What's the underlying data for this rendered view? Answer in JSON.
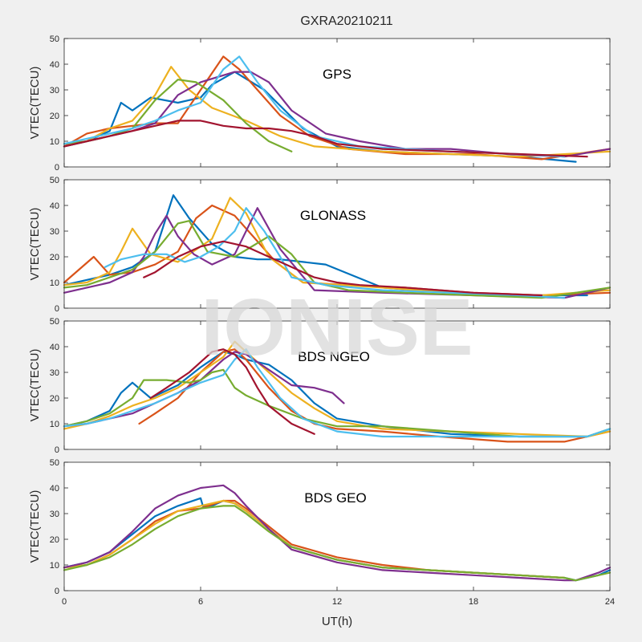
{
  "title": "GXRA20210211",
  "watermark": "IONISE",
  "xlabel": "UT(h)",
  "chart_data": [
    {
      "type": "line",
      "panel_label": "GPS",
      "ylabel": "VTEC(TECU)",
      "xlim": [
        0,
        24
      ],
      "ylim": [
        0,
        50
      ],
      "xticks": [
        0,
        6,
        12,
        18,
        24
      ],
      "yticks": [
        0,
        10,
        20,
        30,
        40,
        50
      ],
      "grid": false,
      "series": [
        {
          "color": "#0072BD",
          "x": [
            0,
            1,
            2,
            2.5,
            3,
            3.8,
            5,
            6,
            6.5,
            7.5,
            8.8,
            10.5,
            12,
            14,
            17,
            20,
            22.5
          ],
          "y": [
            8,
            10,
            14,
            25,
            22,
            27,
            25,
            27,
            32,
            37,
            30,
            15,
            8,
            6,
            5,
            4,
            2
          ]
        },
        {
          "color": "#D95319",
          "x": [
            0,
            1,
            2,
            3,
            4,
            5,
            6,
            7,
            7.7,
            8.5,
            9.5,
            10.8,
            12.5,
            15,
            18,
            21,
            24
          ],
          "y": [
            8,
            13,
            15,
            16,
            17,
            17,
            30,
            43,
            38,
            30,
            20,
            12,
            7,
            5,
            5,
            3,
            7
          ]
        },
        {
          "color": "#EDB120",
          "x": [
            0,
            1,
            2,
            3,
            4,
            4.7,
            5.5,
            6.5,
            8,
            9.5,
            11,
            14,
            17,
            20,
            24
          ],
          "y": [
            8,
            10,
            15,
            18,
            28,
            39,
            30,
            23,
            18,
            12,
            8,
            6,
            5,
            4,
            6
          ]
        },
        {
          "color": "#7E2F8E",
          "x": [
            0,
            1,
            2,
            3,
            4,
            5,
            6,
            7.5,
            8.2,
            9,
            10,
            11.5,
            13,
            15,
            17,
            19.5,
            22,
            24
          ],
          "y": [
            8,
            10,
            12,
            14,
            17,
            28,
            33,
            37,
            37,
            33,
            22,
            13,
            10,
            7,
            7,
            5,
            4,
            7
          ]
        },
        {
          "color": "#77AC30",
          "x": [
            0,
            1,
            2,
            3,
            4,
            5,
            5.8,
            7,
            8,
            9,
            10
          ],
          "y": [
            9,
            10,
            12,
            15,
            26,
            34,
            33,
            26,
            17,
            10,
            6
          ]
        },
        {
          "color": "#4DBEEE",
          "x": [
            0,
            1,
            2,
            3,
            4,
            5,
            6,
            7,
            7.7,
            8.5,
            9.5,
            11,
            13,
            15,
            17,
            20,
            22
          ],
          "y": [
            9,
            11,
            13,
            15,
            18,
            22,
            25,
            38,
            43,
            33,
            22,
            12,
            8,
            7,
            6,
            5,
            4
          ]
        },
        {
          "color": "#A2142F",
          "x": [
            0,
            1,
            2,
            3,
            4,
            5,
            6,
            7,
            8,
            9,
            10,
            11,
            12,
            14,
            17,
            20,
            23
          ],
          "y": [
            8,
            10,
            12,
            14,
            16,
            18,
            18,
            16,
            15,
            15,
            14,
            12,
            9,
            7,
            6,
            5,
            4
          ]
        }
      ]
    },
    {
      "type": "line",
      "panel_label": "GLONASS",
      "ylabel": "VTEC(TECU)",
      "xlim": [
        0,
        24
      ],
      "ylim": [
        0,
        50
      ],
      "xticks": [
        0,
        6,
        12,
        18,
        24
      ],
      "yticks": [
        0,
        10,
        20,
        30,
        40,
        50
      ],
      "grid": false,
      "series": [
        {
          "color": "#0072BD",
          "x": [
            0,
            1,
            2,
            3,
            4,
            4.8,
            5.5,
            6.5,
            7.5,
            8.5,
            9.5,
            10.5,
            11.5,
            14,
            17,
            20,
            23
          ],
          "y": [
            9,
            11,
            13,
            16,
            22,
            44,
            35,
            25,
            20,
            19,
            19,
            18,
            17,
            8,
            6,
            5,
            5
          ]
        },
        {
          "color": "#D95319",
          "x": [
            0,
            1.3,
            2,
            3,
            4,
            5,
            5.8,
            6.5,
            7.5,
            8.3,
            9.3,
            10.5,
            12.5,
            15,
            18,
            21,
            24
          ],
          "y": [
            10,
            20,
            13,
            14,
            17,
            22,
            35,
            40,
            36,
            28,
            18,
            10,
            9,
            8,
            6,
            5,
            6
          ]
        },
        {
          "color": "#EDB120",
          "x": [
            0,
            1,
            2,
            2.5,
            3,
            3.8,
            5,
            6.5,
            7.3,
            8,
            9,
            10.5,
            14,
            17,
            21,
            24
          ],
          "y": [
            9,
            10,
            14,
            22,
            31,
            21,
            18,
            27,
            43,
            37,
            20,
            10,
            8,
            6,
            5,
            7
          ]
        },
        {
          "color": "#7E2F8E",
          "x": [
            0,
            1,
            2,
            3,
            3.5,
            4,
            4.5,
            5,
            5.7,
            6.5,
            7.5,
            8.5,
            9.5,
            11,
            14,
            18,
            22,
            24
          ],
          "y": [
            6,
            8,
            10,
            14,
            20,
            29,
            36,
            28,
            21,
            17,
            21,
            39,
            23,
            7,
            6,
            5,
            4,
            8
          ]
        },
        {
          "color": "#77AC30",
          "x": [
            0,
            1,
            2,
            3,
            4,
            5,
            5.5,
            6.3,
            7.5,
            9,
            10,
            11,
            12.5,
            15,
            18,
            21,
            24
          ],
          "y": [
            8,
            9,
            12,
            15,
            22,
            33,
            34,
            22,
            20,
            28,
            21,
            10,
            7,
            6,
            5,
            4,
            8
          ]
        },
        {
          "color": "#4DBEEE",
          "x": [
            1.8,
            2.5,
            3.5,
            4.5,
            5.3,
            6,
            6.8,
            7.5,
            8,
            8.8,
            9.5,
            10,
            11.5,
            14,
            17,
            20,
            22
          ],
          "y": [
            16,
            19,
            21,
            21,
            18,
            20,
            24,
            30,
            39,
            30,
            20,
            12,
            9,
            7,
            6,
            5,
            4
          ]
        },
        {
          "color": "#A2142F",
          "x": [
            3.5,
            4,
            5,
            6,
            7,
            8,
            9,
            10,
            11,
            12,
            13,
            15,
            18,
            21
          ],
          "y": [
            12,
            14,
            20,
            24,
            26,
            24,
            20,
            16,
            12,
            10,
            9,
            8,
            6,
            5
          ]
        }
      ]
    },
    {
      "type": "line",
      "panel_label": "BDS NGEO",
      "ylabel": "VTEC(TECU)",
      "xlim": [
        0,
        24
      ],
      "ylim": [
        0,
        50
      ],
      "xticks": [
        0,
        6,
        12,
        18,
        24
      ],
      "yticks": [
        0,
        10,
        20,
        30,
        40,
        50
      ],
      "grid": false,
      "series": [
        {
          "color": "#0072BD",
          "x": [
            0,
            1,
            2,
            2.5,
            3,
            3.8,
            5,
            6,
            7,
            7.5,
            8,
            9,
            10,
            11,
            12,
            14,
            17,
            20,
            23,
            24
          ],
          "y": [
            9,
            11,
            15,
            22,
            26,
            20,
            25,
            32,
            38,
            37,
            35,
            33,
            27,
            18,
            12,
            9,
            6,
            5,
            5,
            8
          ]
        },
        {
          "color": "#D95319",
          "x": [
            3.3,
            4,
            5,
            6,
            7,
            7.5,
            8,
            9,
            10,
            11,
            12,
            14,
            16.5,
            19.5,
            22,
            24
          ],
          "y": [
            10,
            14,
            20,
            30,
            38,
            39,
            35,
            24,
            15,
            10,
            8,
            7,
            5,
            3,
            3,
            7
          ]
        },
        {
          "color": "#EDB120",
          "x": [
            0,
            1,
            2,
            3,
            4,
            5,
            6,
            7,
            7.5,
            8,
            9,
            10,
            11,
            12,
            14,
            17,
            20,
            23,
            24
          ],
          "y": [
            8,
            10,
            13,
            17,
            20,
            24,
            30,
            36,
            42,
            38,
            30,
            22,
            16,
            11,
            8,
            7,
            6,
            5,
            7
          ]
        },
        {
          "color": "#7E2F8E",
          "x": [
            0,
            1,
            2,
            3,
            4,
            5,
            6,
            7,
            7.5,
            8,
            9,
            10,
            11,
            11.8,
            12.3
          ],
          "y": [
            9,
            10,
            12,
            14,
            18,
            22,
            27,
            35,
            38,
            37,
            31,
            25,
            24,
            22,
            18
          ]
        },
        {
          "color": "#77AC30",
          "x": [
            0,
            1,
            2,
            3,
            3.5,
            4.5,
            5.5,
            6,
            6.5,
            7,
            7.5,
            8,
            9,
            10.5,
            12,
            14,
            17,
            20,
            23,
            24
          ],
          "y": [
            9,
            11,
            14,
            20,
            27,
            27,
            26,
            27,
            30,
            31,
            24,
            21,
            17,
            12,
            9,
            9,
            7,
            5,
            5,
            8
          ]
        },
        {
          "color": "#4DBEEE",
          "x": [
            0,
            1,
            2,
            3,
            4,
            5,
            6,
            7,
            7.5,
            8,
            8.5,
            9.5,
            10.5,
            12,
            14,
            17,
            20,
            23,
            24
          ],
          "y": [
            9,
            10,
            12,
            15,
            18,
            22,
            26,
            29,
            35,
            39,
            32,
            20,
            12,
            7,
            5,
            5,
            5,
            5,
            8
          ]
        },
        {
          "color": "#A2142F",
          "x": [
            3.8,
            4.5,
            5.5,
            6,
            6.5,
            7,
            7.5,
            8,
            8.5,
            9,
            10,
            11
          ],
          "y": [
            20,
            24,
            30,
            34,
            38,
            39,
            37,
            32,
            24,
            17,
            10,
            6
          ]
        }
      ]
    },
    {
      "type": "line",
      "panel_label": "BDS GEO",
      "ylabel": "VTEC(TECU)",
      "xlim": [
        0,
        24
      ],
      "ylim": [
        0,
        50
      ],
      "xticks": [
        0,
        6,
        12,
        18,
        24
      ],
      "yticks": [
        0,
        10,
        20,
        30,
        40,
        50
      ],
      "grid": false,
      "series": [
        {
          "color": "#0072BD",
          "x": [
            0,
            1,
            2,
            3,
            4,
            5,
            6,
            6.1,
            6.5,
            7,
            7.5,
            8,
            9,
            10,
            12,
            14,
            16,
            18,
            20,
            22,
            22.5,
            23.5,
            24
          ],
          "y": [
            9,
            11,
            15,
            22,
            29,
            33,
            36,
            33,
            33,
            35,
            34,
            31,
            24,
            17,
            12,
            9,
            8,
            7,
            6,
            5,
            4,
            6,
            8
          ]
        },
        {
          "color": "#D95319",
          "x": [
            0,
            1,
            2,
            3,
            4,
            5,
            6,
            7,
            7.5,
            8,
            9,
            10,
            12,
            14,
            16,
            18,
            20,
            22
          ],
          "y": [
            9,
            10,
            14,
            20,
            27,
            31,
            32,
            35,
            35,
            32,
            25,
            18,
            13,
            10,
            8,
            7,
            6,
            5
          ]
        },
        {
          "color": "#EDB120",
          "x": [
            0,
            1,
            2,
            3,
            4,
            5,
            6,
            7,
            7.5,
            8,
            9,
            10,
            12,
            14,
            16,
            18,
            20,
            22
          ],
          "y": [
            9,
            10,
            14,
            20,
            26,
            31,
            33,
            35,
            34,
            31,
            24,
            17,
            12,
            9,
            8,
            7,
            6,
            5
          ]
        },
        {
          "color": "#7E2F8E",
          "x": [
            0,
            1,
            2,
            3,
            4,
            5,
            6,
            7,
            7.5,
            8,
            9,
            10,
            12,
            14,
            16,
            18,
            20,
            22,
            22.5,
            23.5,
            24
          ],
          "y": [
            9,
            11,
            15,
            23,
            32,
            37,
            40,
            41,
            38,
            33,
            24,
            16,
            11,
            8,
            7,
            6,
            5,
            4,
            4,
            7,
            9
          ]
        },
        {
          "color": "#77AC30",
          "x": [
            0,
            1,
            2,
            3,
            4,
            5,
            6,
            7,
            7.5,
            8,
            9,
            10,
            12,
            14,
            16,
            18,
            20,
            22,
            22.5,
            23.5,
            24
          ],
          "y": [
            8,
            10,
            13,
            18,
            24,
            29,
            32,
            33,
            33,
            30,
            23,
            17,
            12,
            9,
            8,
            7,
            6,
            5,
            4,
            6,
            7
          ]
        }
      ]
    }
  ]
}
